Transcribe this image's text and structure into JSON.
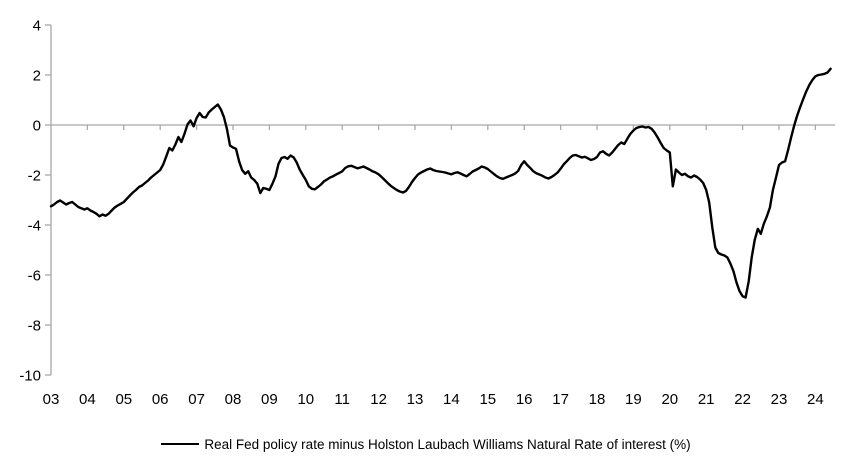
{
  "chart_data": {
    "type": "line",
    "title": "",
    "xlabel": "",
    "ylabel": "",
    "grid": "off",
    "zero_baseline": true,
    "legend_position": "bottom-center",
    "x_axis": {
      "start_year": 2003,
      "tick_labels": [
        "03",
        "04",
        "05",
        "06",
        "07",
        "08",
        "09",
        "10",
        "11",
        "12",
        "13",
        "14",
        "15",
        "16",
        "17",
        "18",
        "19",
        "20",
        "21",
        "22",
        "23",
        "24"
      ],
      "range": [
        2003,
        2024.55
      ]
    },
    "y_axis": {
      "ticks": [
        4,
        2,
        0,
        -2,
        -4,
        -6,
        -8,
        -10
      ],
      "tick_labels": [
        "4",
        "2",
        "0",
        "-2",
        "-4",
        "-6",
        "-8",
        "-10"
      ],
      "range": [
        -10,
        4
      ]
    },
    "series": [
      {
        "name": "Real Fed policy rate minus Holston Laubach Williams Natural Rate of interest (%)",
        "color": "#000000",
        "start_year": 2003,
        "frequency": "monthly",
        "values": [
          -3.25,
          -3.18,
          -3.08,
          -3.02,
          -3.1,
          -3.18,
          -3.12,
          -3.08,
          -3.18,
          -3.28,
          -3.33,
          -3.38,
          -3.33,
          -3.42,
          -3.48,
          -3.55,
          -3.65,
          -3.58,
          -3.63,
          -3.55,
          -3.42,
          -3.3,
          -3.22,
          -3.15,
          -3.08,
          -2.95,
          -2.82,
          -2.7,
          -2.6,
          -2.48,
          -2.42,
          -2.32,
          -2.22,
          -2.1,
          -2.0,
          -1.9,
          -1.8,
          -1.58,
          -1.25,
          -0.92,
          -1.02,
          -0.78,
          -0.48,
          -0.68,
          -0.35,
          0.02,
          0.18,
          -0.05,
          0.28,
          0.48,
          0.32,
          0.3,
          0.5,
          0.62,
          0.72,
          0.82,
          0.62,
          0.32,
          -0.15,
          -0.82,
          -0.9,
          -0.95,
          -1.45,
          -1.8,
          -1.95,
          -1.85,
          -2.1,
          -2.2,
          -2.35,
          -2.72,
          -2.52,
          -2.55,
          -2.6,
          -2.35,
          -2.05,
          -1.55,
          -1.32,
          -1.28,
          -1.35,
          -1.22,
          -1.3,
          -1.5,
          -1.78,
          -2.0,
          -2.2,
          -2.45,
          -2.55,
          -2.57,
          -2.48,
          -2.38,
          -2.25,
          -2.18,
          -2.1,
          -2.05,
          -1.98,
          -1.92,
          -1.85,
          -1.72,
          -1.65,
          -1.63,
          -1.68,
          -1.73,
          -1.7,
          -1.66,
          -1.72,
          -1.78,
          -1.85,
          -1.9,
          -1.97,
          -2.08,
          -2.2,
          -2.32,
          -2.43,
          -2.52,
          -2.6,
          -2.66,
          -2.7,
          -2.64,
          -2.48,
          -2.28,
          -2.12,
          -1.98,
          -1.9,
          -1.84,
          -1.78,
          -1.74,
          -1.8,
          -1.84,
          -1.86,
          -1.88,
          -1.9,
          -1.94,
          -1.97,
          -1.92,
          -1.89,
          -1.94,
          -2.0,
          -2.05,
          -1.96,
          -1.86,
          -1.8,
          -1.74,
          -1.66,
          -1.7,
          -1.76,
          -1.86,
          -1.96,
          -2.05,
          -2.12,
          -2.15,
          -2.1,
          -2.05,
          -2.0,
          -1.94,
          -1.84,
          -1.6,
          -1.45,
          -1.6,
          -1.72,
          -1.85,
          -1.93,
          -1.98,
          -2.03,
          -2.1,
          -2.14,
          -2.08,
          -2.0,
          -1.9,
          -1.75,
          -1.58,
          -1.45,
          -1.32,
          -1.22,
          -1.2,
          -1.25,
          -1.3,
          -1.27,
          -1.33,
          -1.4,
          -1.36,
          -1.28,
          -1.1,
          -1.05,
          -1.15,
          -1.22,
          -1.1,
          -0.95,
          -0.8,
          -0.7,
          -0.76,
          -0.55,
          -0.35,
          -0.22,
          -0.12,
          -0.08,
          -0.06,
          -0.1,
          -0.08,
          -0.15,
          -0.3,
          -0.5,
          -0.72,
          -0.92,
          -1.02,
          -1.1,
          -2.45,
          -1.78,
          -1.9,
          -2.0,
          -1.95,
          -2.05,
          -2.1,
          -2.02,
          -2.08,
          -2.18,
          -2.32,
          -2.6,
          -3.1,
          -4.1,
          -4.9,
          -5.12,
          -5.18,
          -5.22,
          -5.3,
          -5.55,
          -5.85,
          -6.3,
          -6.65,
          -6.85,
          -6.9,
          -6.25,
          -5.3,
          -4.6,
          -4.15,
          -4.35,
          -3.95,
          -3.65,
          -3.3,
          -2.6,
          -2.1,
          -1.6,
          -1.5,
          -1.45,
          -1.0,
          -0.5,
          -0.02,
          0.38,
          0.72,
          1.05,
          1.35,
          1.6,
          1.8,
          1.95,
          2.0,
          2.02,
          2.05,
          2.1,
          2.25
        ]
      }
    ]
  },
  "colors": {
    "background": "#FFFFFF",
    "axis": "#A8A8A8",
    "text": "#000000",
    "series_line": "#000000"
  }
}
